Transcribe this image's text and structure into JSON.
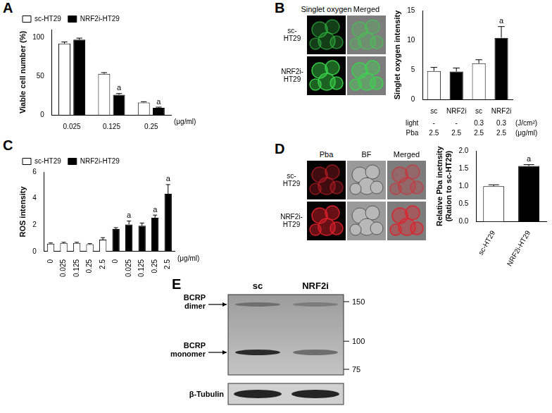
{
  "chart_data": [
    {
      "panel_label": "A",
      "type": "bar",
      "categories": [
        0.025,
        0.125,
        0.25
      ],
      "x_unit": "(μg/ml)",
      "y_label": "Viable cell number (%)",
      "ylim": [
        0,
        110
      ],
      "yticks": [
        0,
        50,
        100
      ],
      "grid": false,
      "legend": "top-left",
      "series": [
        {
          "name": "sc-HT29",
          "color": "#ffffff",
          "values": [
            92,
            53,
            16
          ],
          "errors": [
            2,
            1.5,
            1
          ],
          "annotations": [
            null,
            null,
            null
          ]
        },
        {
          "name": "NRF2i-HT29",
          "color": "#000000",
          "values": [
            97,
            26,
            9
          ],
          "errors": [
            2,
            1.5,
            1
          ],
          "annotations": [
            null,
            "a",
            "a"
          ]
        }
      ]
    },
    {
      "panel_label": "B",
      "type": "bar",
      "categories": [
        "sc",
        "NRF2i",
        "sc",
        "NRF2i"
      ],
      "y_label": "Singlet oxygen intensity",
      "ylim": [
        0,
        15
      ],
      "yticks": [
        0,
        5,
        10,
        15
      ],
      "grid": false,
      "values": [
        4.8,
        4.7,
        6.1,
        10.4
      ],
      "errors": [
        0.6,
        0.6,
        0.6,
        1.9
      ],
      "annotations": [
        null,
        null,
        null,
        "a"
      ],
      "colors": [
        "#ffffff",
        "#000000",
        "#ffffff",
        "#000000"
      ],
      "x_table": [
        {
          "label": "light",
          "values": [
            "-",
            "-",
            "0.3",
            "0.3"
          ],
          "unit": "(J/cm²)"
        },
        {
          "label": "Pba",
          "values": [
            "2.5",
            "2.5",
            "2.5",
            "2.5"
          ],
          "unit": "(μg/ml)"
        }
      ]
    },
    {
      "panel_label": "C",
      "type": "bar",
      "categories": [
        0,
        0.025,
        0.125,
        0.25,
        2.5,
        0,
        0.025,
        0.125,
        0.25,
        2.5
      ],
      "x_unit": "(μg/ml)",
      "y_label": "ROS intensity",
      "ylim": [
        0,
        6
      ],
      "yticks": [
        0,
        2,
        4,
        6
      ],
      "grid": false,
      "legend": "top-left",
      "series": [
        {
          "name": "sc-HT29",
          "color": "#ffffff",
          "values": [
            0.6,
            0.65,
            0.65,
            0.55,
            0.9,
            null,
            null,
            null,
            null,
            null
          ],
          "errors": [
            0.05,
            0.05,
            0.05,
            0.05,
            0.15,
            null,
            null,
            null,
            null,
            null
          ],
          "annotations": [
            null,
            null,
            null,
            null,
            null,
            null,
            null,
            null,
            null,
            null
          ]
        },
        {
          "name": "NRF2i-HT29",
          "color": "#000000",
          "values": [
            null,
            null,
            null,
            null,
            null,
            1.7,
            2.05,
            1.95,
            2.55,
            4.35
          ],
          "errors": [
            null,
            null,
            null,
            null,
            null,
            0.1,
            0.25,
            0.2,
            0.2,
            0.7
          ],
          "annotations": [
            null,
            null,
            null,
            null,
            null,
            null,
            "a",
            null,
            "a",
            "a"
          ]
        }
      ]
    },
    {
      "panel_label": "D",
      "type": "bar",
      "categories": [
        "sc-HT29",
        "NRF2i-HT29"
      ],
      "y_label": [
        "Relative Pba inetnsity",
        "(Ration to sc-HT29)"
      ],
      "ylim": [
        0,
        2.0
      ],
      "yticks": [
        {
          "value": 0,
          "label": "0.0"
        },
        {
          "value": 0.5,
          "label": "0.5"
        },
        {
          "value": 1.0,
          "label": "1.0"
        },
        {
          "value": 1.5,
          "label": "1.5"
        },
        {
          "value": 2.0,
          "label": "2.0"
        }
      ],
      "grid": false,
      "values": [
        1.0,
        1.57
      ],
      "errors": [
        0.04,
        0.04
      ],
      "annotations": [
        null,
        "a"
      ],
      "colors": [
        "#ffffff",
        "#000000"
      ]
    }
  ],
  "images": [
    {
      "columns": [
        "Singlet oxygen",
        "Merged"
      ],
      "rows": [
        "sc-HT29",
        "NRF2i-HT29"
      ]
    },
    {
      "columns": [
        "Pba",
        "BF",
        "Merged"
      ],
      "rows": [
        "sc-HT29",
        "NRF2i-HT29"
      ]
    }
  ],
  "blot": {
    "panel_label": "E",
    "lanes": [
      "sc",
      "NRF2i"
    ],
    "bands": [
      "BCRP dimer",
      "BCRP monomer"
    ],
    "markers": [
      150,
      100,
      75
    ],
    "loading_control": "β-Tubulin"
  }
}
